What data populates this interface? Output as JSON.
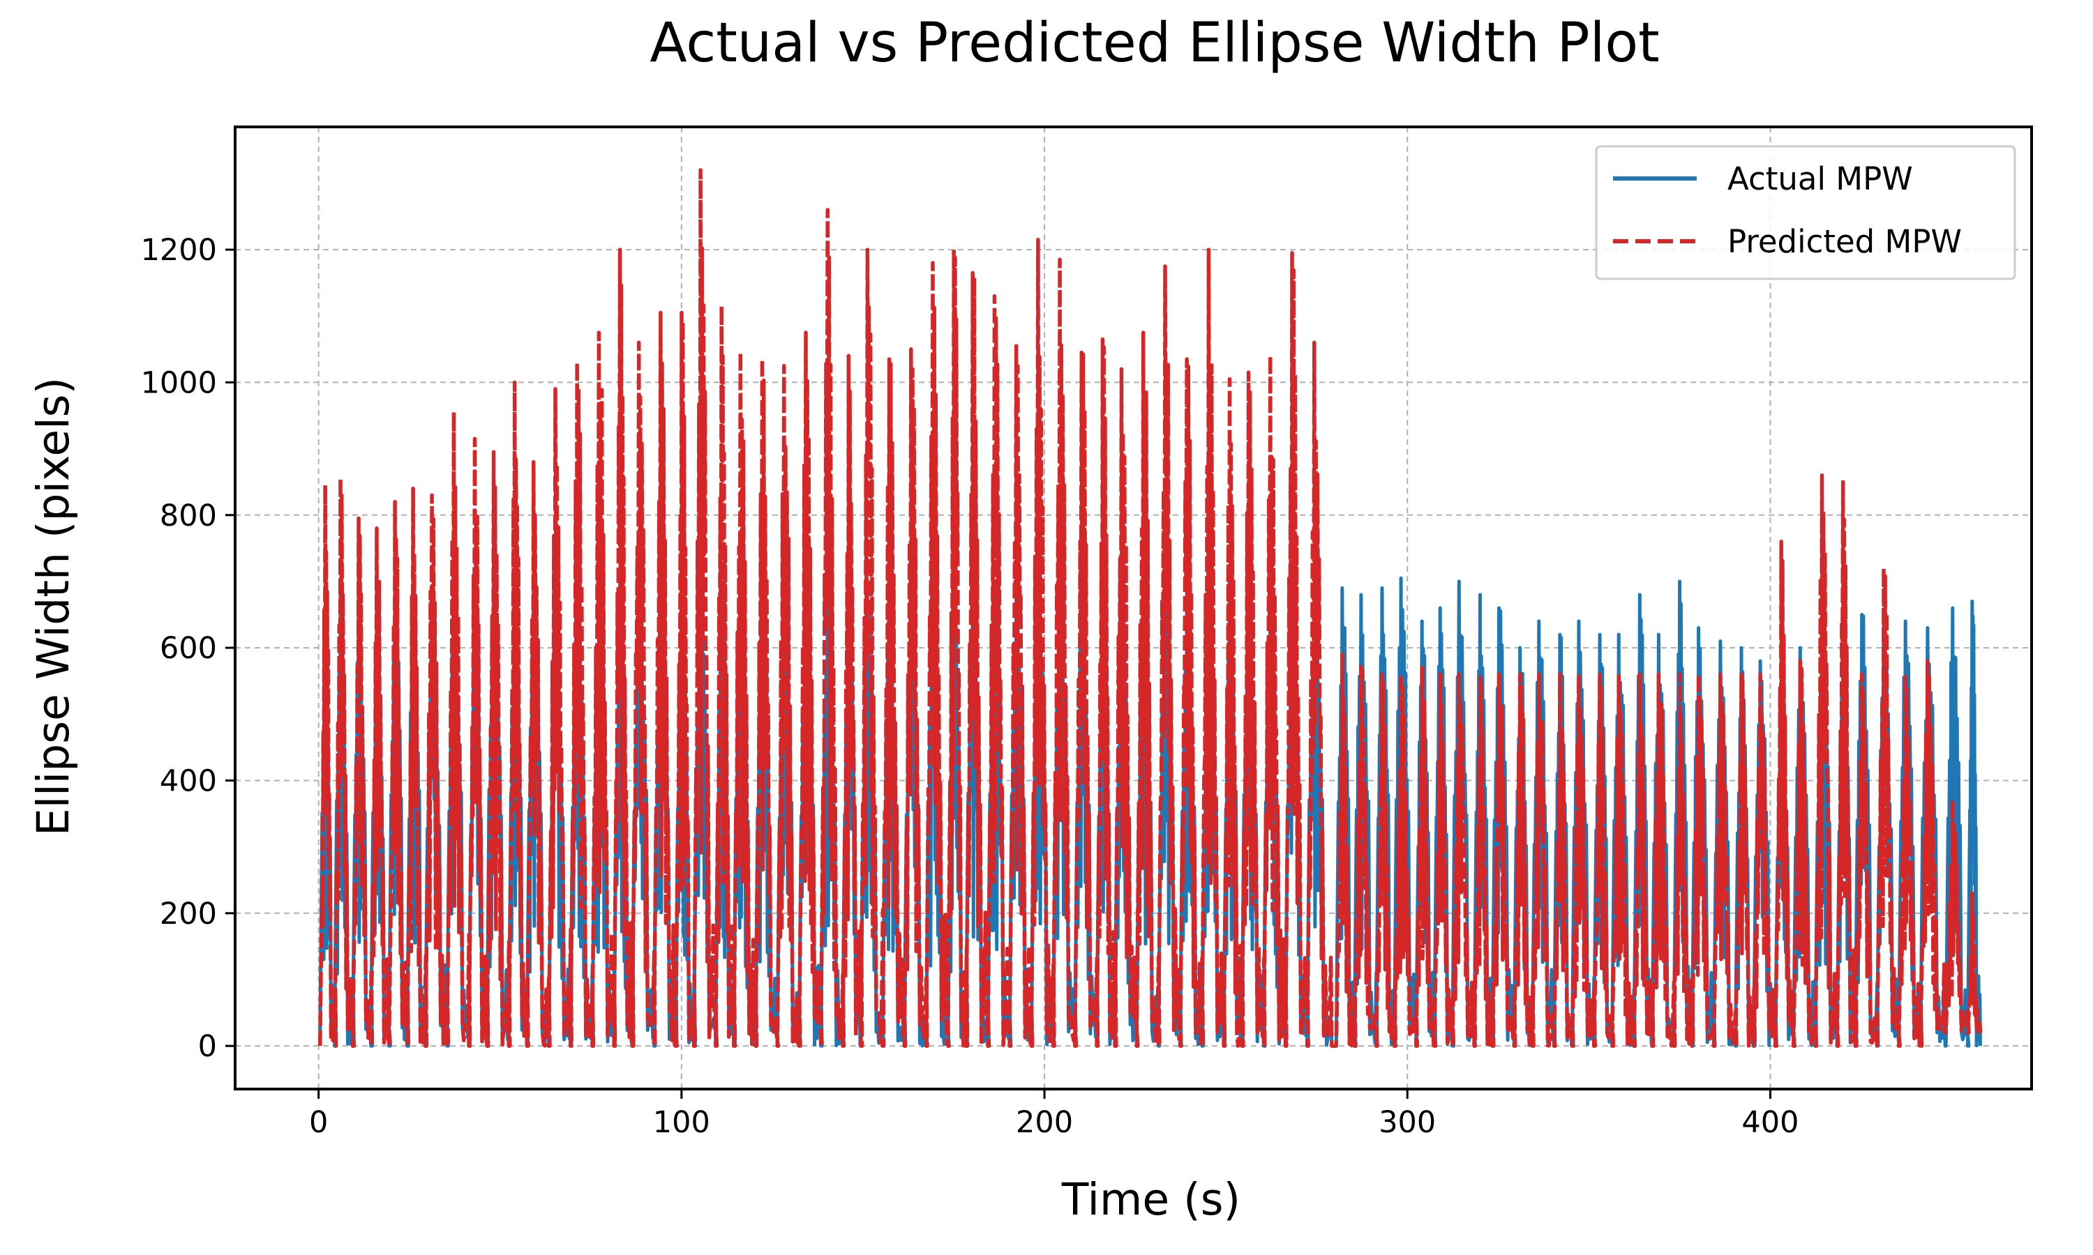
{
  "chart_data": {
    "type": "line",
    "title": "Actual vs Predicted Ellipse Width Plot",
    "xlabel": "Time (s)",
    "ylabel": "Ellipse Width (pixels)",
    "xlim": [
      -23,
      472
    ],
    "ylim": [
      -65,
      1385
    ],
    "x_ticks": [
      0,
      100,
      200,
      300,
      400
    ],
    "y_ticks": [
      0,
      200,
      400,
      600,
      800,
      1000,
      1200
    ],
    "grid": true,
    "legend_position": "top-right",
    "cycle_times": [
      1,
      5,
      10,
      15,
      20,
      25,
      30,
      36,
      42,
      47,
      53,
      58,
      64,
      70,
      76,
      82,
      87,
      93,
      99,
      104,
      110,
      115,
      121,
      127,
      133,
      139,
      145,
      150,
      156,
      162,
      168,
      174,
      179,
      185,
      191,
      197,
      203,
      209,
      215,
      220,
      226,
      232,
      238,
      244,
      250,
      255,
      261,
      267,
      273,
      281,
      286,
      292,
      297,
      303,
      308,
      313,
      319,
      324,
      330,
      335,
      341,
      346,
      352,
      357,
      363,
      368,
      374,
      379,
      385,
      391,
      396,
      402,
      407,
      413,
      419,
      424,
      430,
      436,
      442,
      449,
      455
    ],
    "series": [
      {
        "name": "Actual MPW",
        "color": "#1f77b4",
        "dashed": false,
        "peaks": [
          660,
          680,
          690,
          650,
          720,
          710,
          690,
          720,
          690,
          730,
          700,
          710,
          650,
          700,
          690,
          700,
          710,
          700,
          690,
          700,
          700,
          690,
          700,
          700,
          690,
          700,
          700,
          700,
          700,
          700,
          700,
          710,
          700,
          700,
          690,
          700,
          700,
          690,
          700,
          680,
          680,
          700,
          700,
          680,
          700,
          690,
          680,
          700,
          690,
          690,
          680,
          690,
          705,
          640,
          660,
          700,
          680,
          660,
          600,
          640,
          620,
          640,
          620,
          620,
          680,
          620,
          700,
          630,
          610,
          600,
          580,
          580,
          600,
          640,
          640,
          650,
          640,
          640,
          630,
          660,
          670
        ]
      },
      {
        "name": "Predicted MPW",
        "color": "#d62728",
        "dashed": true,
        "peaks": [
          845,
          855,
          795,
          780,
          820,
          840,
          830,
          955,
          915,
          895,
          1000,
          880,
          990,
          1030,
          1075,
          1200,
          1060,
          1105,
          1105,
          1320,
          1115,
          1045,
          1035,
          1025,
          1075,
          1260,
          1040,
          1200,
          1035,
          1050,
          1180,
          1200,
          1165,
          1130,
          1055,
          1215,
          1185,
          1045,
          1065,
          1020,
          1075,
          1175,
          1035,
          1200,
          1005,
          1015,
          1040,
          1195,
          1060,
          590,
          575,
          560,
          560,
          570,
          560,
          560,
          560,
          560,
          560,
          560,
          560,
          560,
          560,
          560,
          560,
          560,
          560,
          560,
          560,
          560,
          560,
          760,
          580,
          860,
          850,
          560,
          720,
          560,
          580,
          370,
          230
        ]
      }
    ]
  }
}
